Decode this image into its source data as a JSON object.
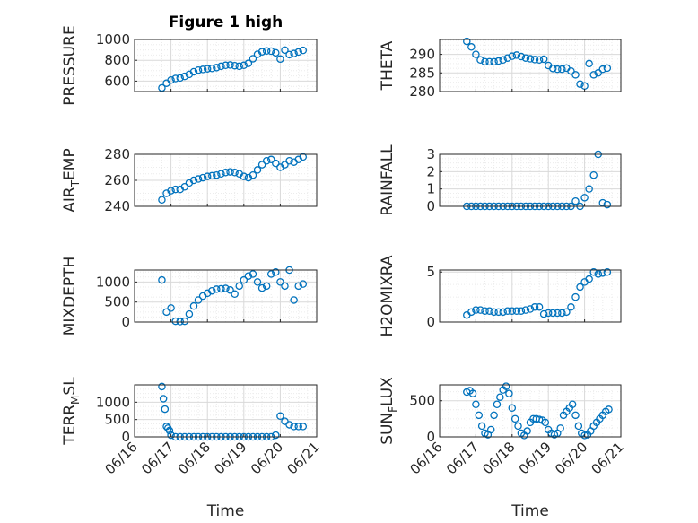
{
  "figure_title": "Figure 1 high",
  "colors": {
    "marker": "#0072BD",
    "axis": "#262626",
    "grid": "#d9d9d9",
    "minor_grid": "#ececec"
  },
  "chart_data": [
    {
      "type": "scatter",
      "ylabel": "PRESSURE",
      "title": "Figure 1 high",
      "ylim": [
        500,
        1000
      ],
      "yticks": [
        600,
        800,
        1000
      ],
      "xlim": [
        "06/16",
        "06/21"
      ],
      "grid": true,
      "x": [
        "06/16 18:00",
        "06/16 21:00",
        "06/17 00:00",
        "06/17 03:00",
        "06/17 06:00",
        "06/17 09:00",
        "06/17 12:00",
        "06/17 15:00",
        "06/17 18:00",
        "06/17 21:00",
        "06/18 00:00",
        "06/18 03:00",
        "06/18 06:00",
        "06/18 09:00",
        "06/18 12:00",
        "06/18 15:00",
        "06/18 18:00",
        "06/18 21:00",
        "06/19 00:00",
        "06/19 03:00",
        "06/19 06:00",
        "06/19 09:00",
        "06/19 12:00",
        "06/19 15:00",
        "06/19 18:00",
        "06/19 21:00",
        "06/20 00:00",
        "06/20 03:00",
        "06/20 06:00",
        "06/20 09:00",
        "06/20 12:00",
        "06/20 15:00"
      ],
      "y": [
        535,
        580,
        610,
        625,
        630,
        645,
        665,
        690,
        705,
        712,
        718,
        722,
        730,
        742,
        752,
        755,
        748,
        742,
        752,
        770,
        815,
        858,
        882,
        890,
        888,
        872,
        812,
        898,
        855,
        865,
        880,
        895
      ]
    },
    {
      "type": "scatter",
      "ylabel": "THETA",
      "ylim": [
        280,
        294
      ],
      "yticks": [
        280,
        285,
        290
      ],
      "xlim": [
        "06/16",
        "06/21"
      ],
      "grid": true,
      "x": [
        "06/16 18:00",
        "06/16 21:00",
        "06/17 00:00",
        "06/17 03:00",
        "06/17 06:00",
        "06/17 09:00",
        "06/17 12:00",
        "06/17 15:00",
        "06/17 18:00",
        "06/17 21:00",
        "06/18 00:00",
        "06/18 03:00",
        "06/18 06:00",
        "06/18 09:00",
        "06/18 12:00",
        "06/18 15:00",
        "06/18 18:00",
        "06/18 21:00",
        "06/19 00:00",
        "06/19 03:00",
        "06/19 06:00",
        "06/19 09:00",
        "06/19 12:00",
        "06/19 15:00",
        "06/19 18:00",
        "06/19 21:00",
        "06/20 00:00",
        "06/20 03:00",
        "06/20 06:00",
        "06/20 09:00",
        "06/20 12:00",
        "06/20 15:00"
      ],
      "y": [
        293.5,
        292,
        290,
        288.5,
        288,
        288,
        288,
        288.2,
        288.5,
        289,
        289.5,
        289.8,
        289.4,
        289,
        288.8,
        288.6,
        288.5,
        288.7,
        287,
        286.2,
        286,
        286,
        286.3,
        285.5,
        284.5,
        282,
        281.5,
        287.5,
        284.5,
        285,
        286,
        286.3
      ]
    },
    {
      "type": "scatter",
      "ylabel": "AIR_TEMP",
      "ylim": [
        240,
        280
      ],
      "yticks": [
        240,
        260,
        280
      ],
      "xlim": [
        "06/16",
        "06/21"
      ],
      "grid": true,
      "x": [
        "06/16 18:00",
        "06/16 21:00",
        "06/17 00:00",
        "06/17 03:00",
        "06/17 06:00",
        "06/17 09:00",
        "06/17 12:00",
        "06/17 15:00",
        "06/17 18:00",
        "06/17 21:00",
        "06/18 00:00",
        "06/18 03:00",
        "06/18 06:00",
        "06/18 09:00",
        "06/18 12:00",
        "06/18 15:00",
        "06/18 18:00",
        "06/18 21:00",
        "06/19 00:00",
        "06/19 03:00",
        "06/19 06:00",
        "06/19 09:00",
        "06/19 12:00",
        "06/19 15:00",
        "06/19 18:00",
        "06/19 21:00",
        "06/20 00:00",
        "06/20 03:00",
        "06/20 06:00",
        "06/20 09:00",
        "06/20 12:00",
        "06/20 15:00"
      ],
      "y": [
        245,
        250,
        252,
        253,
        253,
        255,
        258,
        260,
        261,
        262,
        263,
        263.5,
        264,
        265,
        266,
        266.5,
        266,
        265,
        263,
        262,
        264,
        268,
        272,
        275,
        276,
        273,
        270,
        272,
        275,
        274,
        276,
        278
      ]
    },
    {
      "type": "scatter",
      "ylabel": "RAINFALL",
      "ylim": [
        0,
        3
      ],
      "yticks": [
        0,
        1,
        2,
        3
      ],
      "xlim": [
        "06/16",
        "06/21"
      ],
      "grid": true,
      "x": [
        "06/16 18:00",
        "06/16 21:00",
        "06/17 00:00",
        "06/17 03:00",
        "06/17 06:00",
        "06/17 09:00",
        "06/17 12:00",
        "06/17 15:00",
        "06/17 18:00",
        "06/17 21:00",
        "06/18 00:00",
        "06/18 03:00",
        "06/18 06:00",
        "06/18 09:00",
        "06/18 12:00",
        "06/18 15:00",
        "06/18 18:00",
        "06/18 21:00",
        "06/19 00:00",
        "06/19 03:00",
        "06/19 06:00",
        "06/19 09:00",
        "06/19 12:00",
        "06/19 15:00",
        "06/19 18:00",
        "06/19 21:00",
        "06/20 00:00",
        "06/20 03:00",
        "06/20 06:00",
        "06/20 09:00",
        "06/20 12:00",
        "06/20 15:00"
      ],
      "y": [
        0,
        0,
        0,
        0,
        0,
        0,
        0,
        0,
        0,
        0,
        0,
        0,
        0,
        0,
        0,
        0,
        0,
        0,
        0,
        0,
        0,
        0,
        0,
        0,
        0.3,
        0,
        0.5,
        1,
        1.8,
        3,
        0.2,
        0.1
      ]
    },
    {
      "type": "scatter",
      "ylabel": "MIXDEPTH",
      "ylim": [
        0,
        1300
      ],
      "yticks": [
        0,
        500,
        1000
      ],
      "xlim": [
        "06/16",
        "06/21"
      ],
      "grid": true,
      "x": [
        "06/16 18:00",
        "06/16 21:00",
        "06/17 00:00",
        "06/17 03:00",
        "06/17 06:00",
        "06/17 09:00",
        "06/17 12:00",
        "06/17 15:00",
        "06/17 18:00",
        "06/17 21:00",
        "06/18 00:00",
        "06/18 03:00",
        "06/18 06:00",
        "06/18 09:00",
        "06/18 12:00",
        "06/18 15:00",
        "06/18 18:00",
        "06/18 21:00",
        "06/19 00:00",
        "06/19 03:00",
        "06/19 06:00",
        "06/19 09:00",
        "06/19 12:00",
        "06/19 15:00",
        "06/19 18:00",
        "06/19 21:00",
        "06/20 00:00",
        "06/20 03:00",
        "06/20 06:00",
        "06/20 09:00",
        "06/20 12:00",
        "06/20 15:00"
      ],
      "y": [
        1050,
        250,
        350,
        20,
        10,
        20,
        200,
        400,
        550,
        650,
        720,
        780,
        820,
        830,
        840,
        800,
        700,
        900,
        1050,
        1150,
        1200,
        1000,
        850,
        900,
        1200,
        1250,
        1000,
        900,
        1300,
        550,
        900,
        950
      ]
    },
    {
      "type": "scatter",
      "ylabel": "H2OMIXRA",
      "ylim": [
        0,
        5.2
      ],
      "yticks": [
        0,
        5
      ],
      "xlim": [
        "06/16",
        "06/21"
      ],
      "grid": true,
      "x": [
        "06/16 18:00",
        "06/16 21:00",
        "06/17 00:00",
        "06/17 03:00",
        "06/17 06:00",
        "06/17 09:00",
        "06/17 12:00",
        "06/17 15:00",
        "06/17 18:00",
        "06/17 21:00",
        "06/18 00:00",
        "06/18 03:00",
        "06/18 06:00",
        "06/18 09:00",
        "06/18 12:00",
        "06/18 15:00",
        "06/18 18:00",
        "06/18 21:00",
        "06/19 00:00",
        "06/19 03:00",
        "06/19 06:00",
        "06/19 09:00",
        "06/19 12:00",
        "06/19 15:00",
        "06/19 18:00",
        "06/19 21:00",
        "06/20 00:00",
        "06/20 03:00",
        "06/20 06:00",
        "06/20 09:00",
        "06/20 12:00",
        "06/20 15:00"
      ],
      "y": [
        0.7,
        1,
        1.2,
        1.2,
        1.1,
        1.1,
        1.0,
        1.0,
        1.0,
        1.1,
        1.1,
        1.1,
        1.1,
        1.2,
        1.3,
        1.5,
        1.5,
        0.8,
        0.9,
        0.9,
        0.9,
        0.9,
        1.0,
        1.5,
        2.5,
        3.5,
        4.0,
        4.3,
        5.0,
        4.8,
        4.9,
        5.0
      ]
    },
    {
      "type": "scatter",
      "ylabel": "TERR_MSL",
      "ylim": [
        0,
        1500
      ],
      "yticks": [
        0,
        500,
        1000
      ],
      "xlim": [
        "06/16",
        "06/21"
      ],
      "grid": true,
      "x": [
        "06/16 18:00",
        "06/16 19:00",
        "06/16 20:00",
        "06/16 21:00",
        "06/16 22:00",
        "06/16 23:00",
        "06/17 00:00",
        "06/17 03:00",
        "06/17 06:00",
        "06/17 09:00",
        "06/17 12:00",
        "06/17 15:00",
        "06/17 18:00",
        "06/17 21:00",
        "06/18 00:00",
        "06/18 03:00",
        "06/18 06:00",
        "06/18 09:00",
        "06/18 12:00",
        "06/18 15:00",
        "06/18 18:00",
        "06/18 21:00",
        "06/19 00:00",
        "06/19 03:00",
        "06/19 06:00",
        "06/19 09:00",
        "06/19 12:00",
        "06/19 15:00",
        "06/19 18:00",
        "06/19 21:00",
        "06/20 00:00",
        "06/20 03:00",
        "06/20 06:00",
        "06/20 09:00",
        "06/20 12:00",
        "06/20 15:00"
      ],
      "y": [
        1450,
        1100,
        800,
        300,
        250,
        180,
        50,
        0,
        0,
        0,
        0,
        0,
        0,
        0,
        0,
        0,
        0,
        0,
        0,
        0,
        0,
        0,
        0,
        0,
        0,
        0,
        0,
        0,
        0,
        50,
        600,
        450,
        350,
        300,
        300,
        300
      ]
    },
    {
      "type": "scatter",
      "ylabel": "SUN_FLUX",
      "ylim": [
        0,
        720
      ],
      "yticks": [
        0,
        500
      ],
      "xlim": [
        "06/16",
        "06/21"
      ],
      "grid": true,
      "x": [
        "06/16 18:00",
        "06/16 20:00",
        "06/16 22:00",
        "06/17 00:00",
        "06/17 02:00",
        "06/17 04:00",
        "06/17 06:00",
        "06/17 08:00",
        "06/17 10:00",
        "06/17 12:00",
        "06/17 14:00",
        "06/17 16:00",
        "06/17 18:00",
        "06/17 20:00",
        "06/17 22:00",
        "06/18 00:00",
        "06/18 02:00",
        "06/18 04:00",
        "06/18 06:00",
        "06/18 08:00",
        "06/18 10:00",
        "06/18 12:00",
        "06/18 14:00",
        "06/18 16:00",
        "06/18 18:00",
        "06/18 20:00",
        "06/18 22:00",
        "06/19 00:00",
        "06/19 02:00",
        "06/19 04:00",
        "06/19 06:00",
        "06/19 08:00",
        "06/19 10:00",
        "06/19 12:00",
        "06/19 14:00",
        "06/19 16:00",
        "06/19 18:00",
        "06/19 20:00",
        "06/19 22:00",
        "06/20 00:00",
        "06/20 02:00",
        "06/20 04:00",
        "06/20 06:00",
        "06/20 08:00",
        "06/20 10:00",
        "06/20 12:00",
        "06/20 14:00",
        "06/20 16:00"
      ],
      "y": [
        620,
        640,
        600,
        450,
        300,
        150,
        50,
        30,
        100,
        300,
        450,
        550,
        650,
        700,
        600,
        400,
        250,
        150,
        50,
        20,
        80,
        200,
        250,
        250,
        240,
        230,
        200,
        100,
        50,
        30,
        50,
        120,
        300,
        350,
        400,
        450,
        300,
        150,
        50,
        20,
        30,
        80,
        150,
        200,
        250,
        300,
        350,
        380
      ]
    }
  ],
  "x_tick_labels": [
    "06/16",
    "06/17",
    "06/18",
    "06/19",
    "06/20",
    "06/21"
  ],
  "xlabel": "Time"
}
